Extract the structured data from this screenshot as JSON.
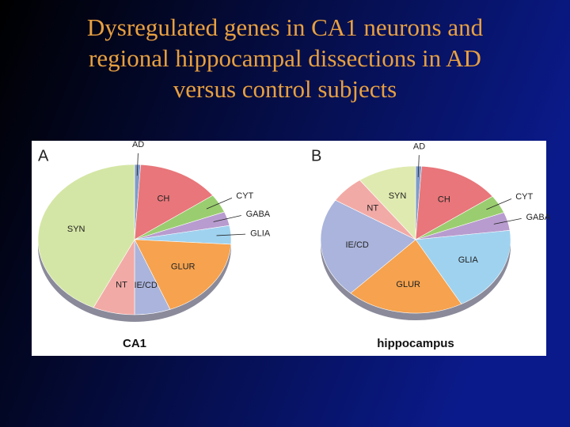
{
  "slide": {
    "title": "Dysregulated genes in CA1 neurons and regional hippocampal dissections in AD versus control subjects"
  },
  "chart_data": [
    {
      "type": "pie",
      "panel": "A",
      "title": "CA1",
      "categories": [
        "AD",
        "CH",
        "CYT",
        "GABA",
        "GLIA",
        "GLUR",
        "IE/CD",
        "NT",
        "SYN"
      ],
      "values": [
        1,
        14,
        4,
        3,
        4,
        18,
        6,
        7,
        43
      ],
      "colors": [
        "#7f9cc9",
        "#e8767a",
        "#9acd6f",
        "#b89ccf",
        "#9fd2ef",
        "#f6a24e",
        "#aab4dc",
        "#f2aaa6",
        "#d4e6a5"
      ]
    },
    {
      "type": "pie",
      "panel": "B",
      "title": "hippocampus",
      "categories": [
        "AD",
        "CH",
        "CYT",
        "GABA",
        "GLIA",
        "GLUR",
        "IE/CD",
        "NT",
        "SYN"
      ],
      "values": [
        1,
        14,
        4,
        4,
        19,
        20,
        22,
        6,
        10
      ],
      "colors": [
        "#7f9cc9",
        "#e8767a",
        "#9acd6f",
        "#b89ccf",
        "#9fd2ef",
        "#f6a24e",
        "#aab4dc",
        "#f2aaa6",
        "#dfeab0"
      ]
    }
  ]
}
